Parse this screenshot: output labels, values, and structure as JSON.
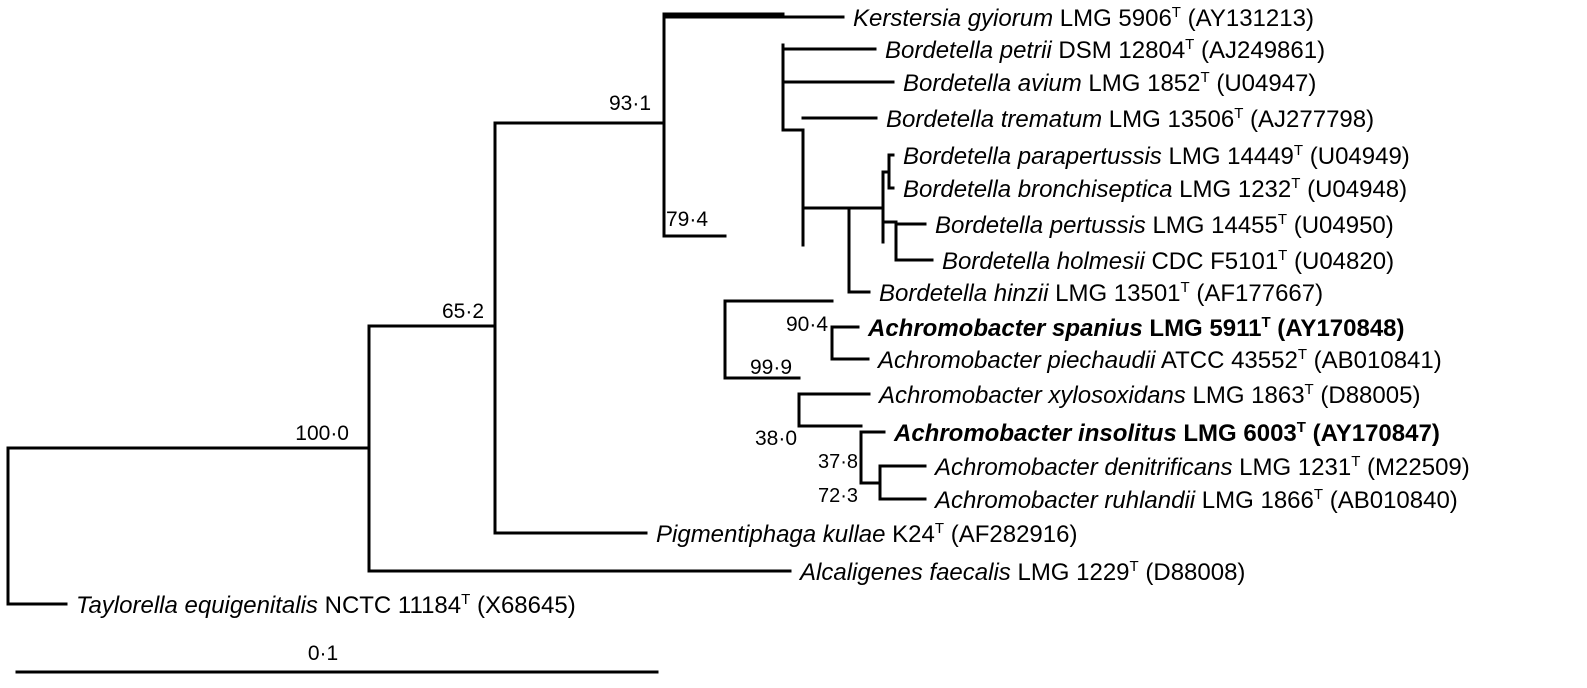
{
  "taxa": [
    {
      "id": "kerstersia",
      "species": "Kerstersia gyiorum",
      "strain": "LMG 5906",
      "type_mark": "T",
      "accession": "(AY131213)",
      "bold": false
    },
    {
      "id": "petrii",
      "species": "Bordetella petrii",
      "strain": "DSM 12804",
      "type_mark": "T",
      "accession": "(AJ249861)",
      "bold": false
    },
    {
      "id": "avium",
      "species": "Bordetella avium",
      "strain": "LMG 1852",
      "type_mark": "T",
      "accession": "(U04947)",
      "bold": false
    },
    {
      "id": "trematum",
      "species": "Bordetella trematum",
      "strain": "LMG 13506",
      "type_mark": "T",
      "accession": "(AJ277798)",
      "bold": false
    },
    {
      "id": "parapertussis",
      "species": "Bordetella parapertussis",
      "strain": "LMG 14449",
      "type_mark": "T",
      "accession": "(U04949)",
      "bold": false
    },
    {
      "id": "bronchiseptica",
      "species": "Bordetella bronchiseptica",
      "strain": "LMG 1232",
      "type_mark": "T",
      "accession": "(U04948)",
      "bold": false
    },
    {
      "id": "pertussis",
      "species": "Bordetella pertussis",
      "strain": "LMG 14455",
      "type_mark": "T",
      "accession": "(U04950)",
      "bold": false
    },
    {
      "id": "holmesii",
      "species": "Bordetella holmesii",
      "strain": "CDC F5101",
      "type_mark": "T",
      "accession": "(U04820)",
      "bold": false
    },
    {
      "id": "hinzii",
      "species": "Bordetella hinzii",
      "strain": "LMG 13501",
      "type_mark": "T",
      "accession": "(AF177667)",
      "bold": false
    },
    {
      "id": "spanius",
      "species": "Achromobacter spanius",
      "strain": "LMG 5911",
      "type_mark": "T",
      "accession": "(AY170848)",
      "bold": true
    },
    {
      "id": "piechaudii",
      "species": "Achromobacter piechaudii",
      "strain": "ATCC 43552",
      "type_mark": "T",
      "accession": "(AB010841)",
      "bold": false
    },
    {
      "id": "xylosoxidans",
      "species": "Achromobacter xylosoxidans",
      "strain": "LMG 1863",
      "type_mark": "T",
      "accession": "(D88005)",
      "bold": false
    },
    {
      "id": "insolitus",
      "species": "Achromobacter insolitus",
      "strain": "LMG 6003",
      "type_mark": "T",
      "accession": "(AY170847)",
      "bold": true
    },
    {
      "id": "denitrificans",
      "species": "Achromobacter denitrificans",
      "strain": "LMG 1231",
      "type_mark": "T",
      "accession": "(M22509)",
      "bold": false
    },
    {
      "id": "ruhlandii",
      "species": "Achromobacter ruhlandii",
      "strain": "LMG 1866",
      "type_mark": "T",
      "accession": "(AB010840)",
      "bold": false
    },
    {
      "id": "pigmentiphaga",
      "species": "Pigmentiphaga kullae",
      "strain": "K24",
      "type_mark": "T",
      "accession": "(AF282916)",
      "bold": false
    },
    {
      "id": "alcaligenes",
      "species": "Alcaligenes faecalis",
      "strain": "LMG 1229",
      "type_mark": "T",
      "accession": "(D88008)",
      "bold": false
    },
    {
      "id": "taylorella",
      "species": "Taylorella equigenitalis",
      "strain": "NCTC 11184",
      "type_mark": "T",
      "accession": "(X68645)",
      "bold": false
    }
  ],
  "bootstrap": [
    {
      "id": "n1000",
      "value": "100·0"
    },
    {
      "id": "n652",
      "value": "65·2"
    },
    {
      "id": "n931",
      "value": "93·1"
    },
    {
      "id": "n794",
      "value": "79·4"
    },
    {
      "id": "n904",
      "value": "90·4"
    },
    {
      "id": "n999",
      "value": "99·9"
    },
    {
      "id": "n380",
      "value": "38·0"
    },
    {
      "id": "n378",
      "value": "37·8"
    },
    {
      "id": "n723",
      "value": "72·3"
    }
  ],
  "scale_bar": {
    "label": "0·1",
    "length": 0.1
  }
}
